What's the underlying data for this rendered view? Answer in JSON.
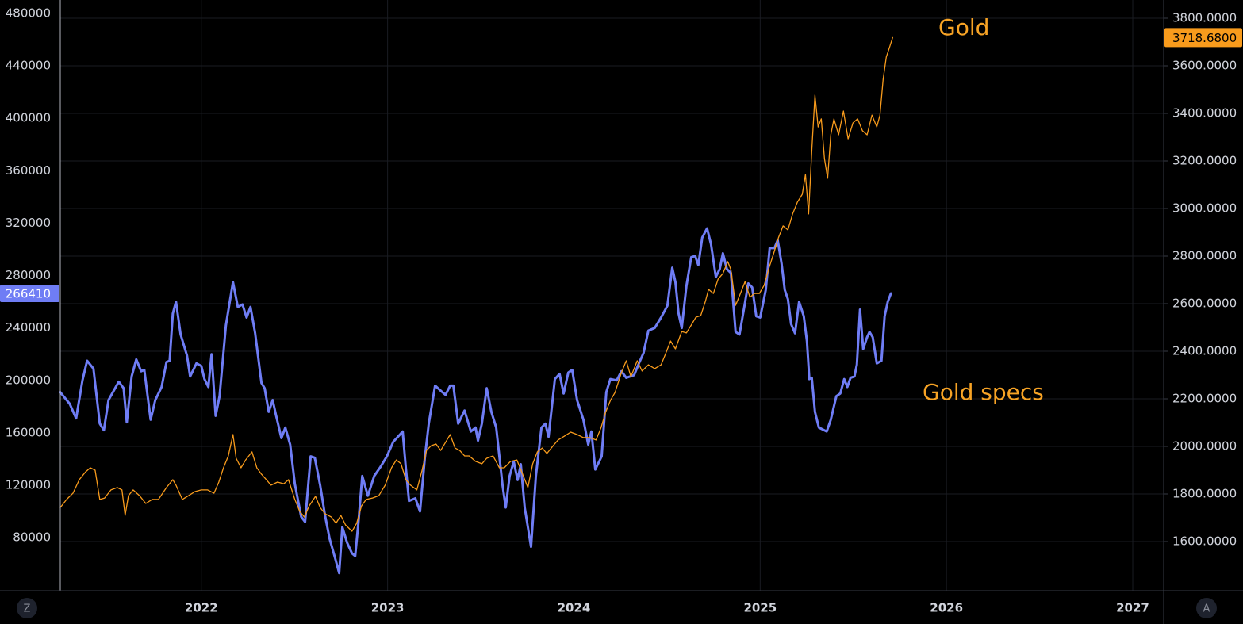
{
  "chart_data": {
    "type": "line",
    "annotations": [
      "Gold",
      "Gold specs"
    ],
    "xlim": [
      2021.243,
      2027.166
    ],
    "xticks": [
      2022,
      2023,
      2024,
      2025,
      2026,
      2027
    ],
    "ylim": [
      39500,
      490300
    ],
    "yticks": [
      80000,
      120000,
      160000,
      200000,
      240000,
      280000,
      320000,
      360000,
      400000,
      440000,
      480000
    ],
    "y2lim": [
      1393.3,
      3876.7
    ],
    "y2ticks": [
      {
        "value": 1600,
        "label": "1600.0000"
      },
      {
        "value": 1800,
        "label": "1800.0000"
      },
      {
        "value": 2000,
        "label": "2000.0000"
      },
      {
        "value": 2200,
        "label": "2200.0000"
      },
      {
        "value": 2400,
        "label": "2400.0000"
      },
      {
        "value": 2600,
        "label": "2600.0000"
      },
      {
        "value": 2800,
        "label": "2800.0000"
      },
      {
        "value": 3000,
        "label": "3000.0000"
      },
      {
        "value": 3200,
        "label": "3200.0000"
      },
      {
        "value": 3400,
        "label": "3400.0000"
      },
      {
        "value": 3600,
        "label": "3600.0000"
      },
      {
        "value": 3800,
        "label": "3800.0000"
      }
    ],
    "grid": true,
    "series": [
      {
        "color": "#6f7df5",
        "axis": "y",
        "last_label": 266410,
        "x": [
          2021.243,
          2021.294,
          2021.328,
          2021.362,
          2021.387,
          2021.421,
          2021.455,
          2021.477,
          2021.502,
          2021.557,
          2021.583,
          2021.6,
          2021.626,
          2021.651,
          2021.677,
          2021.694,
          2021.728,
          2021.753,
          2021.787,
          2021.813,
          2021.83,
          2021.847,
          2021.864,
          2021.889,
          2021.923,
          2021.94,
          2021.974,
          2022.0,
          2022.017,
          2022.038,
          2022.055,
          2022.077,
          2022.098,
          2022.132,
          2022.17,
          2022.196,
          2022.221,
          2022.243,
          2022.264,
          2022.289,
          2022.323,
          2022.34,
          2022.362,
          2022.383,
          2022.4,
          2022.43,
          2022.451,
          2022.477,
          2022.502,
          2022.536,
          2022.557,
          2022.587,
          2022.609,
          2022.638,
          2022.664,
          2022.689,
          2022.719,
          2022.74,
          2022.757,
          2022.783,
          2022.809,
          2022.826,
          2022.843,
          2022.864,
          2022.894,
          2022.928,
          2022.962,
          2022.996,
          2023.03,
          2023.081,
          2023.098,
          2023.115,
          2023.149,
          2023.174,
          2023.2,
          2023.221,
          2023.255,
          2023.294,
          2023.311,
          2023.336,
          2023.353,
          2023.379,
          2023.413,
          2023.447,
          2023.472,
          2023.485,
          2023.506,
          2023.532,
          2023.557,
          2023.583,
          2023.617,
          2023.634,
          2023.655,
          2023.677,
          2023.698,
          2023.715,
          2023.736,
          2023.77,
          2023.796,
          2023.826,
          2023.847,
          2023.864,
          2023.898,
          2023.923,
          2023.945,
          2023.97,
          2023.991,
          2024.017,
          2024.051,
          2024.077,
          2024.094,
          2024.115,
          2024.149,
          2024.174,
          2024.196,
          2024.23,
          2024.255,
          2024.281,
          2024.323,
          2024.349,
          2024.374,
          2024.4,
          2024.434,
          2024.468,
          2024.502,
          2024.528,
          2024.545,
          2024.562,
          2024.579,
          2024.604,
          2024.63,
          2024.651,
          2024.668,
          2024.689,
          2024.715,
          2024.736,
          2024.762,
          2024.783,
          2024.8,
          2024.821,
          2024.843,
          2024.868,
          2024.889,
          2024.911,
          2024.936,
          2024.957,
          2024.979,
          2025.0,
          2025.03,
          2025.051,
          2025.077,
          2025.094,
          2025.115,
          2025.132,
          2025.149,
          2025.166,
          2025.187,
          2025.209,
          2025.234,
          2025.251,
          2025.264,
          2025.277,
          2025.294,
          2025.315,
          2025.357,
          2025.379,
          2025.409,
          2025.43,
          2025.451,
          2025.468,
          2025.485,
          2025.506,
          2025.519,
          2025.536,
          2025.553,
          2025.574,
          2025.587,
          2025.604,
          2025.626,
          2025.651,
          2025.668,
          2025.685,
          2025.702
        ],
        "values": [
          191000,
          182000,
          171000,
          200000,
          215000,
          209000,
          167000,
          162000,
          185000,
          199000,
          194000,
          168000,
          203000,
          216000,
          207000,
          208000,
          170000,
          185000,
          195000,
          214000,
          215000,
          251000,
          260000,
          235000,
          219000,
          203000,
          213000,
          211000,
          201000,
          195000,
          220000,
          173000,
          188000,
          242000,
          275000,
          256000,
          258000,
          248000,
          256000,
          236000,
          198000,
          194000,
          176000,
          185000,
          174000,
          156000,
          164000,
          151000,
          121000,
          96000,
          92000,
          142000,
          141000,
          120000,
          97000,
          79000,
          64000,
          53000,
          88000,
          76000,
          68000,
          66000,
          91000,
          127000,
          112000,
          127000,
          134000,
          142000,
          153000,
          161000,
          133000,
          108000,
          110000,
          100000,
          141000,
          167000,
          196000,
          191000,
          189000,
          196000,
          196000,
          167000,
          177000,
          161000,
          164000,
          154000,
          167000,
          194000,
          176000,
          164000,
          120000,
          103000,
          127000,
          138000,
          124000,
          136000,
          103000,
          73000,
          127000,
          164000,
          167000,
          157000,
          201000,
          205000,
          190000,
          206000,
          208000,
          185000,
          170000,
          151000,
          161000,
          132000,
          142000,
          191000,
          201000,
          200000,
          207000,
          202000,
          204000,
          213000,
          221000,
          238000,
          240000,
          248000,
          257000,
          286000,
          275000,
          251000,
          240000,
          272000,
          294000,
          295000,
          288000,
          309000,
          316000,
          304000,
          279000,
          285000,
          297000,
          285000,
          282000,
          237000,
          235000,
          253000,
          274000,
          271000,
          249000,
          248000,
          269000,
          301000,
          301000,
          307000,
          289000,
          269000,
          262000,
          243000,
          236000,
          260000,
          249000,
          230000,
          201000,
          202000,
          176000,
          164000,
          161000,
          170000,
          188000,
          190000,
          201000,
          195000,
          202000,
          203000,
          212000,
          254000,
          224000,
          233000,
          237000,
          233000,
          213000,
          215000,
          249000,
          260000,
          266410
        ]
      },
      {
        "color": "#f89b1c",
        "axis": "y2",
        "last_label": {
          "value": 3718.68,
          "label": "3718.6800"
        },
        "x": [
          2021.243,
          2021.277,
          2021.311,
          2021.345,
          2021.379,
          2021.404,
          2021.43,
          2021.455,
          2021.481,
          2021.515,
          2021.549,
          2021.574,
          2021.591,
          2021.609,
          2021.634,
          2021.668,
          2021.702,
          2021.736,
          2021.77,
          2021.813,
          2021.847,
          2021.864,
          2021.898,
          2021.932,
          2021.966,
          2022.0,
          2022.034,
          2022.068,
          2022.094,
          2022.119,
          2022.145,
          2022.17,
          2022.187,
          2022.213,
          2022.238,
          2022.272,
          2022.298,
          2022.323,
          2022.349,
          2022.374,
          2022.409,
          2022.443,
          2022.468,
          2022.502,
          2022.528,
          2022.553,
          2022.579,
          2022.613,
          2022.638,
          2022.664,
          2022.698,
          2022.723,
          2022.749,
          2022.774,
          2022.809,
          2022.834,
          2022.86,
          2022.885,
          2022.919,
          2022.953,
          2022.987,
          2023.021,
          2023.047,
          2023.072,
          2023.098,
          2023.123,
          2023.157,
          2023.183,
          2023.209,
          2023.234,
          2023.26,
          2023.285,
          2023.311,
          2023.336,
          2023.362,
          2023.387,
          2023.413,
          2023.438,
          2023.472,
          2023.506,
          2023.532,
          2023.566,
          2023.6,
          2023.626,
          2023.66,
          2023.694,
          2023.728,
          2023.753,
          2023.779,
          2023.804,
          2023.83,
          2023.855,
          2023.889,
          2023.915,
          2023.949,
          2023.983,
          2024.017,
          2024.051,
          2024.085,
          2024.119,
          2024.145,
          2024.17,
          2024.196,
          2024.221,
          2024.255,
          2024.281,
          2024.306,
          2024.34,
          2024.366,
          2024.4,
          2024.434,
          2024.468,
          2024.494,
          2024.519,
          2024.545,
          2024.579,
          2024.604,
          2024.63,
          2024.655,
          2024.681,
          2024.706,
          2024.723,
          2024.749,
          2024.774,
          2024.8,
          2024.826,
          2024.843,
          2024.868,
          2024.894,
          2024.919,
          2024.945,
          2024.97,
          2024.996,
          2025.021,
          2025.047,
          2025.072,
          2025.098,
          2025.123,
          2025.149,
          2025.174,
          2025.2,
          2025.226,
          2025.243,
          2025.26,
          2025.277,
          2025.294,
          2025.311,
          2025.328,
          2025.345,
          2025.362,
          2025.379,
          2025.396,
          2025.421,
          2025.447,
          2025.472,
          2025.498,
          2025.523,
          2025.549,
          2025.574,
          2025.6,
          2025.626,
          2025.643,
          2025.66,
          2025.677,
          2025.694,
          2025.711
        ],
        "values": [
          1743,
          1777,
          1803,
          1860,
          1893,
          1910,
          1900,
          1777,
          1783,
          1817,
          1827,
          1817,
          1710,
          1793,
          1817,
          1793,
          1760,
          1777,
          1777,
          1827,
          1860,
          1837,
          1777,
          1793,
          1810,
          1817,
          1817,
          1803,
          1850,
          1910,
          1960,
          2050,
          1950,
          1910,
          1943,
          1977,
          1910,
          1883,
          1860,
          1837,
          1850,
          1843,
          1860,
          1777,
          1727,
          1703,
          1750,
          1790,
          1743,
          1717,
          1703,
          1677,
          1710,
          1670,
          1643,
          1677,
          1750,
          1777,
          1783,
          1793,
          1837,
          1910,
          1943,
          1927,
          1860,
          1837,
          1817,
          1893,
          1983,
          2003,
          2010,
          1983,
          2017,
          2050,
          1993,
          1983,
          1960,
          1960,
          1937,
          1927,
          1950,
          1960,
          1910,
          1910,
          1937,
          1943,
          1877,
          1827,
          1927,
          1977,
          1993,
          1970,
          2003,
          2027,
          2043,
          2060,
          2050,
          2037,
          2037,
          2027,
          2077,
          2143,
          2193,
          2227,
          2310,
          2360,
          2293,
          2360,
          2317,
          2343,
          2327,
          2343,
          2393,
          2443,
          2410,
          2483,
          2477,
          2510,
          2543,
          2550,
          2610,
          2660,
          2643,
          2703,
          2727,
          2777,
          2743,
          2593,
          2643,
          2693,
          2627,
          2643,
          2643,
          2677,
          2750,
          2810,
          2877,
          2927,
          2910,
          2977,
          3027,
          3060,
          3143,
          2977,
          3243,
          3477,
          3343,
          3377,
          3210,
          3127,
          3310,
          3377,
          3310,
          3410,
          3293,
          3360,
          3377,
          3327,
          3310,
          3393,
          3343,
          3393,
          3543,
          3637,
          3677,
          3718.68
        ]
      }
    ]
  },
  "controls": [
    "Z",
    "A"
  ]
}
